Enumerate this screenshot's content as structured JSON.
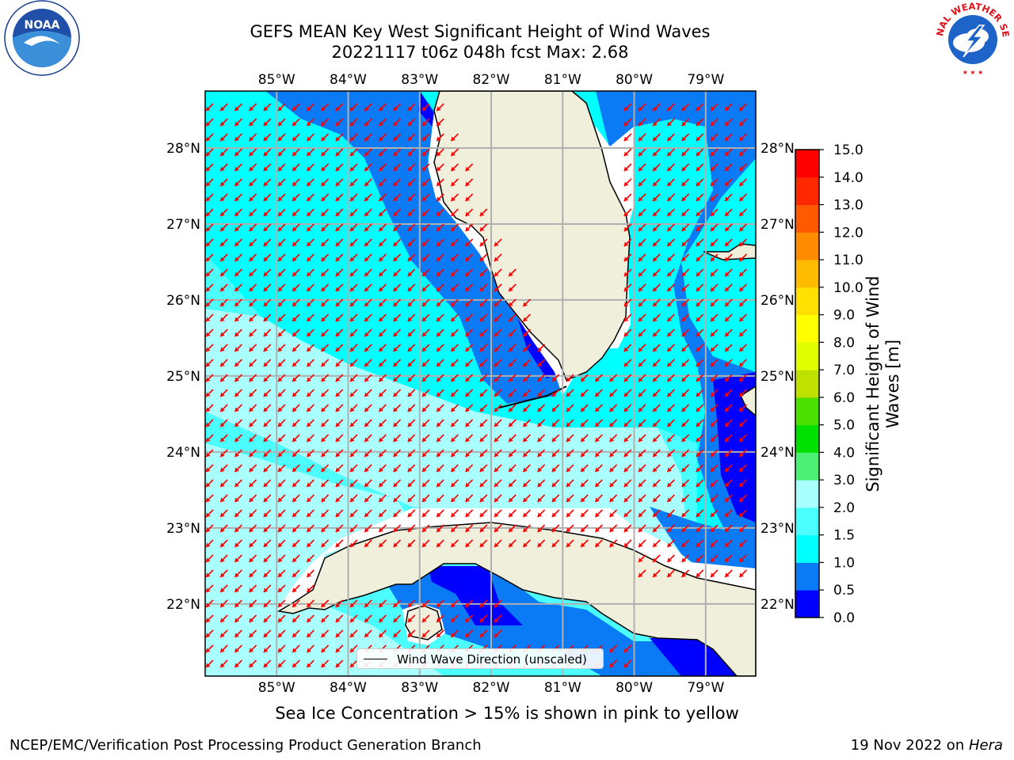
{
  "title": {
    "line1": "GEFS MEAN Key West Significant Height of Wind Waves",
    "line2": "20221117 t06z 048h fcst   Max: 2.68"
  },
  "logos": {
    "left": {
      "name": "noaa-logo",
      "text": "NOAA",
      "ring_text": "NATIONAL OCEANIC AND ATMOSPHERIC ADMINISTRATION · U.S. DEPARTMENT OF COMMERCE"
    },
    "right": {
      "name": "nws-logo",
      "ring_text": "NATIONAL WEATHER SERVICE"
    }
  },
  "map": {
    "lon_labels": [
      "85°W",
      "84°W",
      "83°W",
      "82°W",
      "81°W",
      "80°W",
      "79°W"
    ],
    "lon_values": [
      -85,
      -84,
      -83,
      -82,
      -81,
      -80,
      -79
    ],
    "lat_labels": [
      "28°N",
      "27°N",
      "26°N",
      "25°N",
      "24°N",
      "23°N",
      "22°N"
    ],
    "lat_values": [
      28,
      27,
      26,
      25,
      24,
      23,
      22
    ],
    "lon_range": [
      -86.0,
      -78.3
    ],
    "lat_range": [
      21.05,
      28.75
    ],
    "land_color": "#efefdc",
    "grid_color": "#b0b0b0",
    "arrow_color": "#ff0000",
    "arrow_direction": "toward southwest"
  },
  "colorbar": {
    "title": "Significant Height of Wind Waves [m]",
    "tick_labels": [
      "0.0",
      "0.5",
      "1.0",
      "1.5",
      "2.0",
      "3.0",
      "4.0",
      "5.0",
      "6.0",
      "7.0",
      "8.0",
      "9.0",
      "10.0",
      "11.0",
      "12.0",
      "13.0",
      "14.0",
      "15.0"
    ],
    "colors": [
      "#0000ff",
      "#0a7af5",
      "#00ffff",
      "#4bffff",
      "#aaffff",
      "#4cf075",
      "#00e000",
      "#4be000",
      "#c0e000",
      "#e0ff00",
      "#ffff00",
      "#ffe000",
      "#ffbb00",
      "#ff8c00",
      "#ff5a00",
      "#ff2800",
      "#ff0000"
    ]
  },
  "legend": {
    "label": "Wind Wave Direction (unscaled)"
  },
  "footnote": "Sea Ice Concentration > 15% is shown in pink to yellow",
  "credits": {
    "left": "NCEP/EMC/Verification Post Processing Product Generation Branch",
    "right_prefix": "19 Nov 2022 on ",
    "right_host": "Hera"
  }
}
